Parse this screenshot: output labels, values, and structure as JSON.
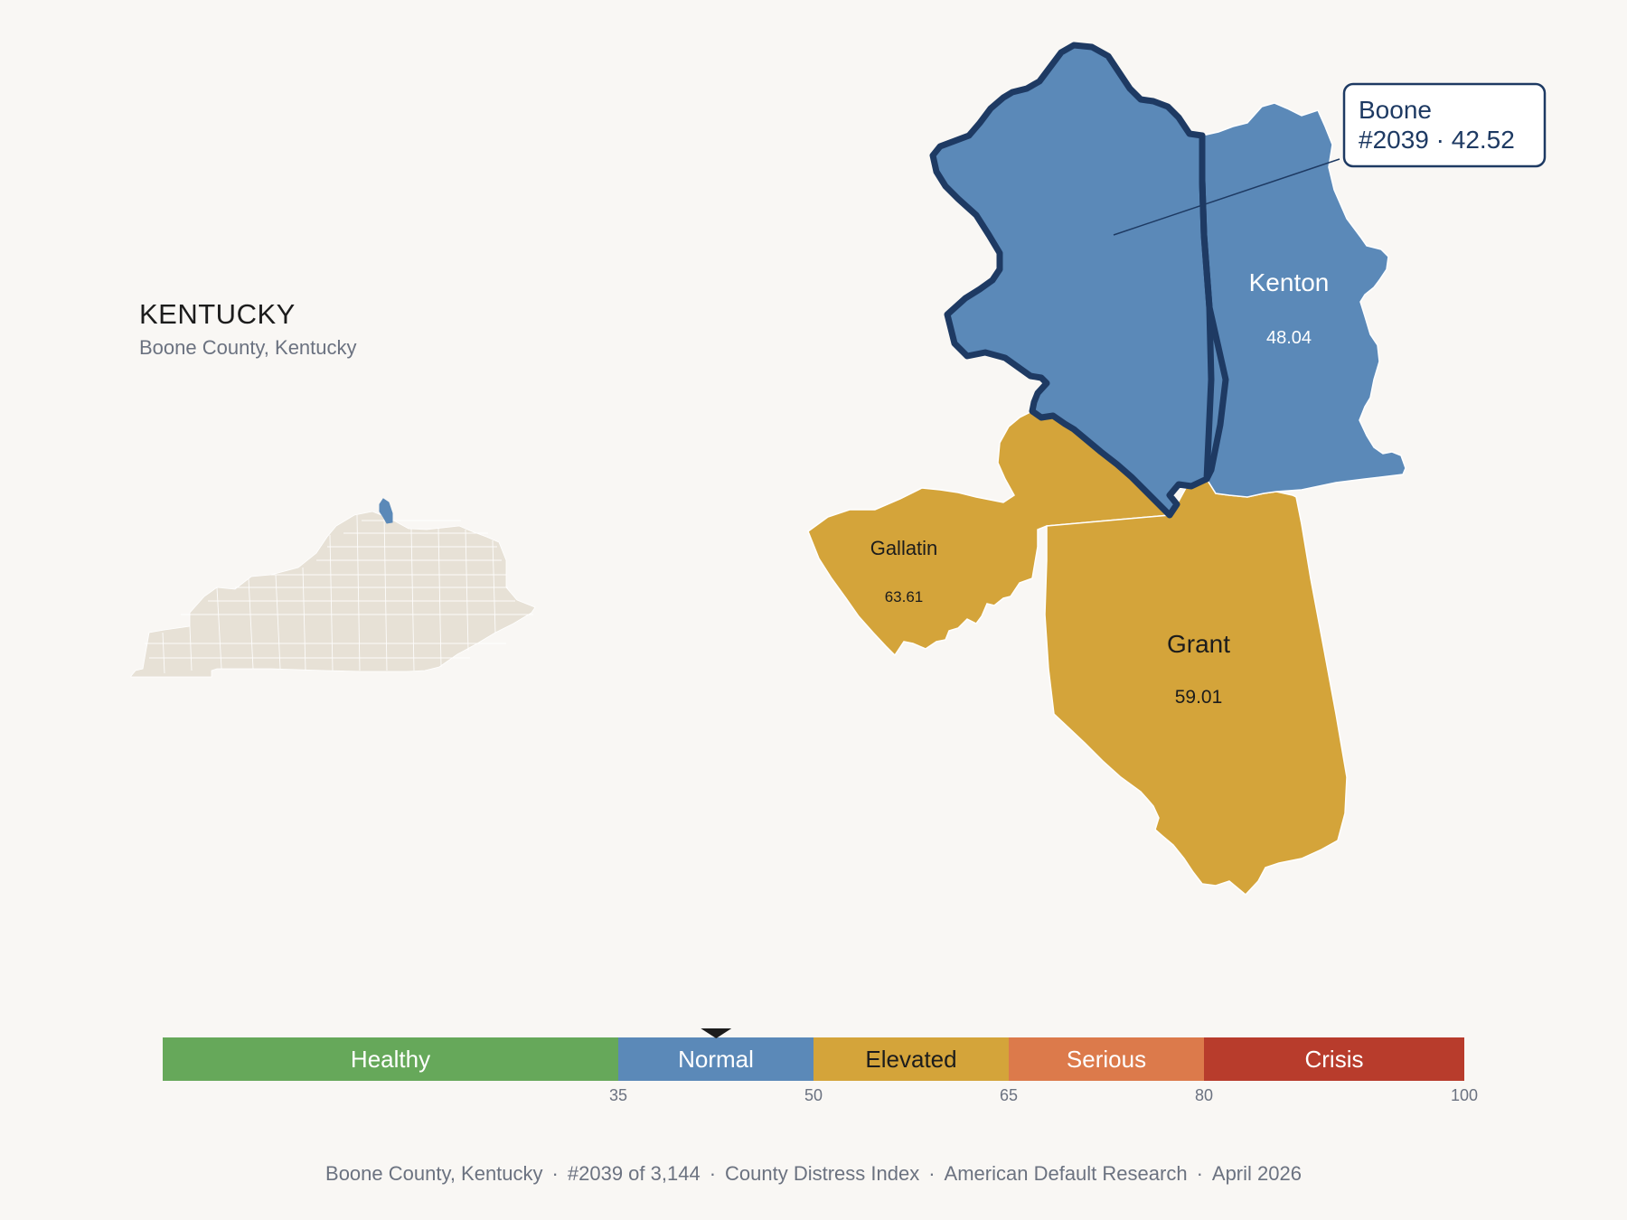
{
  "state": {
    "title": "KENTUCKY",
    "subtitle": "Boone County, Kentucky",
    "highlight_color": "#5b89b8",
    "base_color": "#e7e1d6"
  },
  "counties": [
    {
      "name": "Boone",
      "value": "42.52",
      "category": "Normal",
      "color": "#5b89b8",
      "selected": true
    },
    {
      "name": "Kenton",
      "value": "48.04",
      "category": "Normal",
      "color": "#5b89b8"
    },
    {
      "name": "Gallatin",
      "value": "63.61",
      "category": "Elevated",
      "color": "#d4a43a"
    },
    {
      "name": "Grant",
      "value": "59.01",
      "category": "Elevated",
      "color": "#d4a43a"
    }
  ],
  "callout": {
    "title": "Boone",
    "detail": "#2039 · 42.52",
    "border_color": "#1e3a63"
  },
  "scale": {
    "marker_value": 42.52,
    "segments": [
      {
        "label": "Healthy",
        "from": 0,
        "to": 35,
        "color": "#66a85a",
        "text_color": "#ffffff"
      },
      {
        "label": "Normal",
        "from": 35,
        "to": 50,
        "color": "#5b89b8",
        "text_color": "#ffffff"
      },
      {
        "label": "Elevated",
        "from": 50,
        "to": 65,
        "color": "#d4a43a",
        "text_color": "#1c1c1c"
      },
      {
        "label": "Serious",
        "from": 65,
        "to": 80,
        "color": "#dc7a4b",
        "text_color": "#ffffff"
      },
      {
        "label": "Crisis",
        "from": 80,
        "to": 100,
        "color": "#b83c2c",
        "text_color": "#ffffff"
      }
    ],
    "ticks": [
      "35",
      "50",
      "65",
      "80",
      "100"
    ]
  },
  "footer": {
    "items": [
      "Boone County, Kentucky",
      "#2039 of 3,144",
      "County Distress Index",
      "American Default Research",
      "April 2026"
    ]
  }
}
